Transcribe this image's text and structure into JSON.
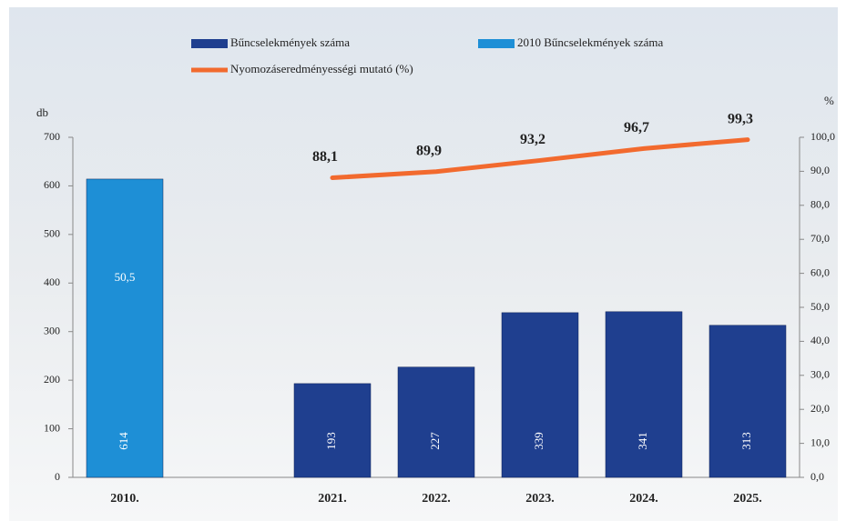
{
  "chart_data": {
    "type": "bar-line",
    "y_label": "db",
    "y2_label": "%",
    "categories": [
      "2010.",
      null,
      "2021.",
      "2022.",
      "2023.",
      "2024.",
      "2025."
    ],
    "series": [
      {
        "name": "Bűncselekmények száma",
        "color": "#1f3f8f",
        "type": "bar",
        "values": [
          null,
          null,
          193,
          227,
          339,
          341,
          313
        ]
      },
      {
        "name": "2010 Bűncselekmények száma",
        "color": "#1e8fd6",
        "type": "bar",
        "values": [
          614,
          null,
          null,
          null,
          null,
          null,
          null
        ]
      },
      {
        "name": "Nyomozáseredményességi mutató (%)",
        "color": "#f26a2e",
        "type": "line",
        "axis": "y2",
        "values": [
          50.5,
          null,
          88.1,
          89.9,
          93.2,
          96.7,
          99.3
        ],
        "value_labels": [
          "50,5",
          null,
          "88,1",
          "89,9",
          "93,2",
          "96,7",
          "99,3"
        ]
      }
    ],
    "ylim": [
      0,
      700
    ],
    "yticks": [
      0,
      100,
      200,
      300,
      400,
      500,
      600,
      700
    ],
    "y2lim": [
      0,
      100
    ],
    "y2ticks": [
      {
        "value": 0,
        "label": "0,0"
      },
      {
        "value": 10,
        "label": "10,0"
      },
      {
        "value": 20,
        "label": "20,0"
      },
      {
        "value": 30,
        "label": "30,0"
      },
      {
        "value": 40,
        "label": "40,0"
      },
      {
        "value": 50,
        "label": "50,0"
      },
      {
        "value": 60,
        "label": "60,0"
      },
      {
        "value": 70,
        "label": "70,0"
      },
      {
        "value": 80,
        "label": "80,0"
      },
      {
        "value": 90,
        "label": "90,0"
      },
      {
        "value": 100,
        "label": "100,0"
      }
    ]
  }
}
